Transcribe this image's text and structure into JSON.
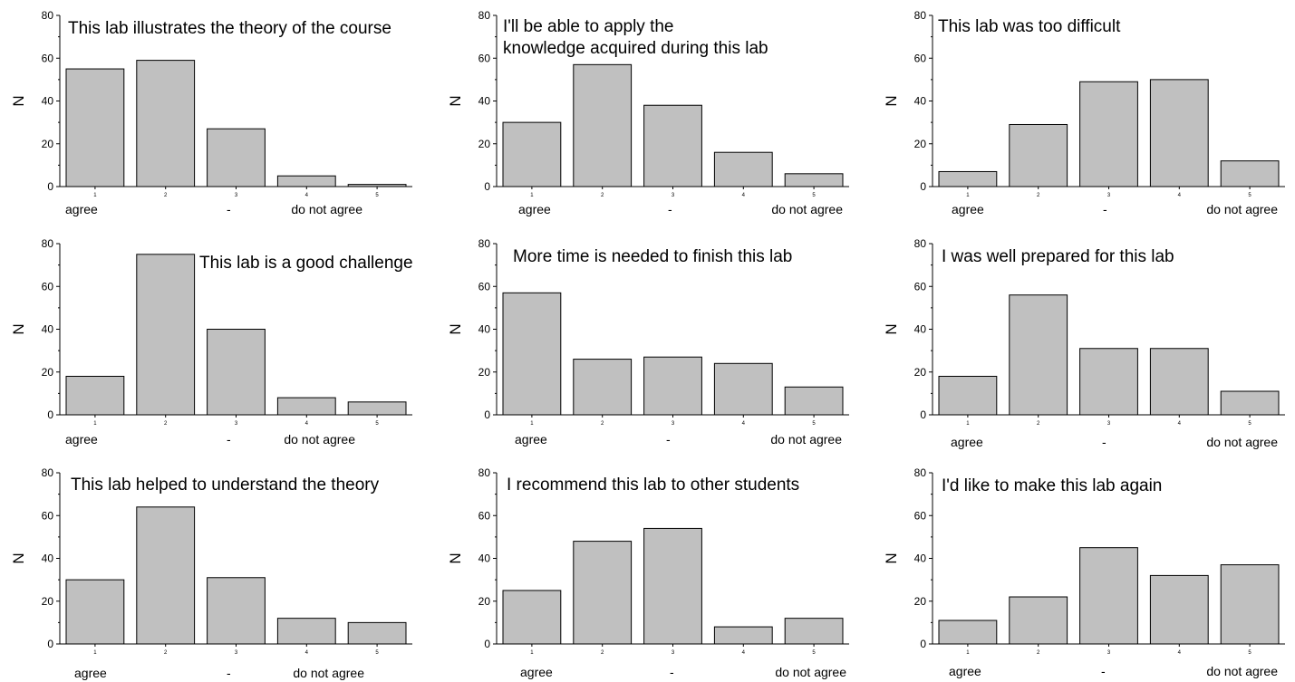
{
  "figure": {
    "scale_labels": {
      "left": "agree",
      "middle": "-",
      "right": "do not agree"
    }
  },
  "chart_data": [
    {
      "type": "bar",
      "title": "This lab illustrates the theory of the course",
      "categories": [
        "1",
        "2",
        "3",
        "4",
        "5"
      ],
      "values": [
        55,
        59,
        27,
        5,
        1
      ],
      "xlabel": "",
      "ylabel": "N",
      "ylim": [
        0,
        80
      ],
      "yticks": [
        0,
        20,
        40,
        60,
        80
      ],
      "bar_color": "#c0c0c0",
      "grid": false
    },
    {
      "type": "bar",
      "title": "I'll be able to apply the knowledge acquired during this lab",
      "categories": [
        "1",
        "2",
        "3",
        "4",
        "5"
      ],
      "values": [
        30,
        57,
        38,
        16,
        6
      ],
      "xlabel": "",
      "ylabel": "N",
      "ylim": [
        0,
        80
      ],
      "yticks": [
        0,
        20,
        40,
        60,
        80
      ],
      "bar_color": "#c0c0c0",
      "grid": false
    },
    {
      "type": "bar",
      "title": "This lab was too difficult",
      "categories": [
        "1",
        "2",
        "3",
        "4",
        "5"
      ],
      "values": [
        7,
        29,
        49,
        50,
        12
      ],
      "xlabel": "",
      "ylabel": "N",
      "ylim": [
        0,
        80
      ],
      "yticks": [
        0,
        20,
        40,
        60,
        80
      ],
      "bar_color": "#c0c0c0",
      "grid": false
    },
    {
      "type": "bar",
      "title": "This lab is a good challenge",
      "categories": [
        "1",
        "2",
        "3",
        "4",
        "5"
      ],
      "values": [
        18,
        75,
        40,
        8,
        6
      ],
      "xlabel": "",
      "ylabel": "N",
      "ylim": [
        0,
        80
      ],
      "yticks": [
        0,
        20,
        40,
        60,
        80
      ],
      "bar_color": "#c0c0c0",
      "grid": false
    },
    {
      "type": "bar",
      "title": "More time is needed to finish this lab",
      "categories": [
        "1",
        "2",
        "3",
        "4",
        "5"
      ],
      "values": [
        57,
        26,
        27,
        24,
        13
      ],
      "xlabel": "",
      "ylabel": "N",
      "ylim": [
        0,
        80
      ],
      "yticks": [
        0,
        20,
        40,
        60,
        80
      ],
      "bar_color": "#c0c0c0",
      "grid": false
    },
    {
      "type": "bar",
      "title": "I was well prepared for this lab",
      "categories": [
        "1",
        "2",
        "3",
        "4",
        "5"
      ],
      "values": [
        18,
        56,
        31,
        31,
        11
      ],
      "xlabel": "",
      "ylabel": "N",
      "ylim": [
        0,
        80
      ],
      "yticks": [
        0,
        20,
        40,
        60,
        80
      ],
      "bar_color": "#c0c0c0",
      "grid": false
    },
    {
      "type": "bar",
      "title": "This lab helped to understand the theory",
      "categories": [
        "1",
        "2",
        "3",
        "4",
        "5"
      ],
      "values": [
        30,
        64,
        31,
        12,
        10
      ],
      "xlabel": "",
      "ylabel": "N",
      "ylim": [
        0,
        80
      ],
      "yticks": [
        0,
        20,
        40,
        60,
        80
      ],
      "bar_color": "#c0c0c0",
      "grid": false
    },
    {
      "type": "bar",
      "title": "I recommend this lab to other students",
      "categories": [
        "1",
        "2",
        "3",
        "4",
        "5"
      ],
      "values": [
        25,
        48,
        54,
        8,
        12
      ],
      "xlabel": "",
      "ylabel": "N",
      "ylim": [
        0,
        80
      ],
      "yticks": [
        0,
        20,
        40,
        60,
        80
      ],
      "bar_color": "#c0c0c0",
      "grid": false
    },
    {
      "type": "bar",
      "title": "I'd like to make this lab again",
      "categories": [
        "1",
        "2",
        "3",
        "4",
        "5"
      ],
      "values": [
        11,
        22,
        45,
        32,
        37
      ],
      "xlabel": "",
      "ylabel": "N",
      "ylim": [
        0,
        80
      ],
      "yticks": [
        0,
        20,
        40,
        60,
        80
      ],
      "bar_color": "#c0c0c0",
      "grid": false
    }
  ]
}
